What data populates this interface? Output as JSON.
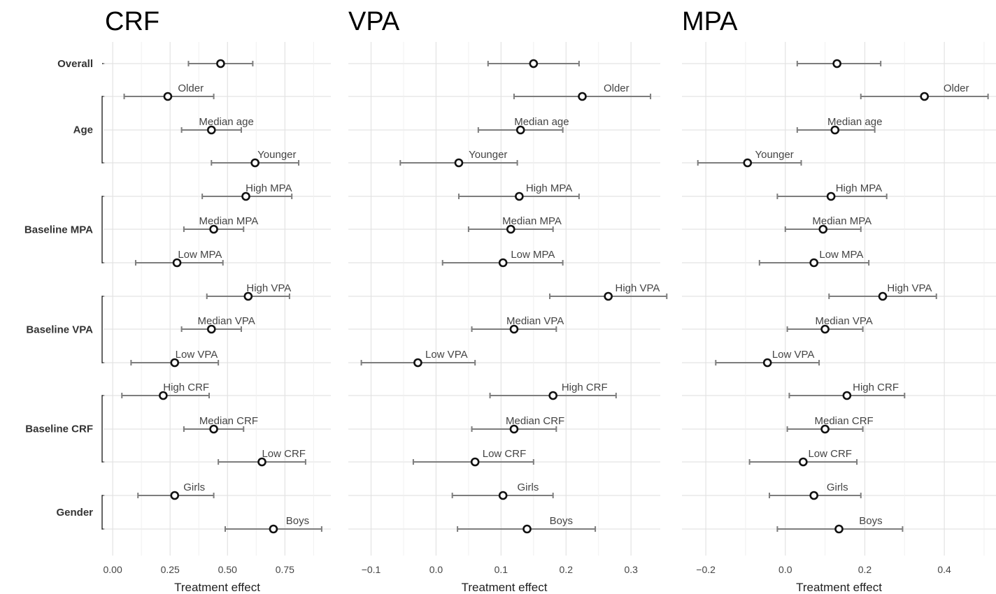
{
  "chart_data": [
    {
      "type": "forest",
      "title": "CRF",
      "xlabel": "Treatment effect",
      "xlim": [
        -0.04,
        0.95
      ],
      "ticks": [
        0.0,
        0.25,
        0.5,
        0.75
      ],
      "tick_labels": [
        "0.00",
        "0.25",
        "0.50",
        "0.75"
      ],
      "points": [
        {
          "label": "",
          "estimate": 0.47,
          "lower": 0.33,
          "upper": 0.61
        },
        {
          "label": "Older",
          "estimate": 0.24,
          "lower": 0.05,
          "upper": 0.44
        },
        {
          "label": "Median age",
          "estimate": 0.43,
          "lower": 0.3,
          "upper": 0.56
        },
        {
          "label": "Younger",
          "estimate": 0.62,
          "lower": 0.43,
          "upper": 0.81
        },
        {
          "label": "High MPA",
          "estimate": 0.58,
          "lower": 0.39,
          "upper": 0.78
        },
        {
          "label": "Median MPA",
          "estimate": 0.44,
          "lower": 0.31,
          "upper": 0.57
        },
        {
          "label": "Low MPA",
          "estimate": 0.28,
          "lower": 0.1,
          "upper": 0.48
        },
        {
          "label": "High VPA",
          "estimate": 0.59,
          "lower": 0.41,
          "upper": 0.77
        },
        {
          "label": "Median VPA",
          "estimate": 0.43,
          "lower": 0.3,
          "upper": 0.56
        },
        {
          "label": "Low VPA",
          "estimate": 0.27,
          "lower": 0.08,
          "upper": 0.46
        },
        {
          "label": "High CRF",
          "estimate": 0.22,
          "lower": 0.04,
          "upper": 0.42
        },
        {
          "label": "Median CRF",
          "estimate": 0.44,
          "lower": 0.31,
          "upper": 0.57
        },
        {
          "label": "Low CRF",
          "estimate": 0.65,
          "lower": 0.46,
          "upper": 0.84
        },
        {
          "label": "Girls",
          "estimate": 0.27,
          "lower": 0.11,
          "upper": 0.44
        },
        {
          "label": "Boys",
          "estimate": 0.7,
          "lower": 0.49,
          "upper": 0.91
        }
      ]
    },
    {
      "type": "forest",
      "title": "VPA",
      "xlabel": "Treatment effect",
      "xlim": [
        -0.135,
        0.345
      ],
      "ticks": [
        -0.1,
        0.0,
        0.1,
        0.2,
        0.3
      ],
      "tick_labels": [
        "−0.1",
        "0.0",
        "0.1",
        "0.2",
        "0.3"
      ],
      "points": [
        {
          "label": "",
          "estimate": 0.15,
          "lower": 0.08,
          "upper": 0.22
        },
        {
          "label": "Older",
          "estimate": 0.225,
          "lower": 0.12,
          "upper": 0.33
        },
        {
          "label": "Median age",
          "estimate": 0.13,
          "lower": 0.065,
          "upper": 0.195
        },
        {
          "label": "Younger",
          "estimate": 0.035,
          "lower": -0.055,
          "upper": 0.125
        },
        {
          "label": "High MPA",
          "estimate": 0.128,
          "lower": 0.035,
          "upper": 0.22
        },
        {
          "label": "Median MPA",
          "estimate": 0.115,
          "lower": 0.05,
          "upper": 0.18
        },
        {
          "label": "Low MPA",
          "estimate": 0.103,
          "lower": 0.01,
          "upper": 0.195
        },
        {
          "label": "High VPA",
          "estimate": 0.265,
          "lower": 0.175,
          "upper": 0.355
        },
        {
          "label": "Median VPA",
          "estimate": 0.12,
          "lower": 0.055,
          "upper": 0.185
        },
        {
          "label": "Low VPA",
          "estimate": -0.028,
          "lower": -0.115,
          "upper": 0.06
        },
        {
          "label": "High CRF",
          "estimate": 0.18,
          "lower": 0.083,
          "upper": 0.277
        },
        {
          "label": "Median CRF",
          "estimate": 0.12,
          "lower": 0.055,
          "upper": 0.185
        },
        {
          "label": "Low CRF",
          "estimate": 0.06,
          "lower": -0.035,
          "upper": 0.15
        },
        {
          "label": "Girls",
          "estimate": 0.103,
          "lower": 0.025,
          "upper": 0.18
        },
        {
          "label": "Boys",
          "estimate": 0.14,
          "lower": 0.033,
          "upper": 0.245
        }
      ]
    },
    {
      "type": "forest",
      "title": "MPA",
      "xlabel": "Treatment effect",
      "xlim": [
        -0.26,
        0.53
      ],
      "ticks": [
        -0.2,
        0.0,
        0.2,
        0.4
      ],
      "tick_labels": [
        "−0.2",
        "0.0",
        "0.2",
        "0.4"
      ],
      "points": [
        {
          "label": "",
          "estimate": 0.13,
          "lower": 0.03,
          "upper": 0.24
        },
        {
          "label": "Older",
          "estimate": 0.35,
          "lower": 0.19,
          "upper": 0.51
        },
        {
          "label": "Median age",
          "estimate": 0.125,
          "lower": 0.03,
          "upper": 0.225
        },
        {
          "label": "Younger",
          "estimate": -0.095,
          "lower": -0.22,
          "upper": 0.04
        },
        {
          "label": "High MPA",
          "estimate": 0.115,
          "lower": -0.02,
          "upper": 0.255
        },
        {
          "label": "Median MPA",
          "estimate": 0.095,
          "lower": 0.0,
          "upper": 0.19
        },
        {
          "label": "Low MPA",
          "estimate": 0.072,
          "lower": -0.065,
          "upper": 0.21
        },
        {
          "label": "High VPA",
          "estimate": 0.245,
          "lower": 0.11,
          "upper": 0.38
        },
        {
          "label": "Median VPA",
          "estimate": 0.1,
          "lower": 0.005,
          "upper": 0.195
        },
        {
          "label": "Low VPA",
          "estimate": -0.045,
          "lower": -0.175,
          "upper": 0.085
        },
        {
          "label": "High CRF",
          "estimate": 0.155,
          "lower": 0.01,
          "upper": 0.3
        },
        {
          "label": "Median CRF",
          "estimate": 0.1,
          "lower": 0.005,
          "upper": 0.195
        },
        {
          "label": "Low CRF",
          "estimate": 0.045,
          "lower": -0.09,
          "upper": 0.18
        },
        {
          "label": "Girls",
          "estimate": 0.072,
          "lower": -0.04,
          "upper": 0.19
        },
        {
          "label": "Boys",
          "estimate": 0.135,
          "lower": -0.02,
          "upper": 0.295
        }
      ]
    }
  ],
  "groups": [
    {
      "label": "Overall",
      "rows": [
        0
      ]
    },
    {
      "label": "Age",
      "rows": [
        1,
        2,
        3
      ]
    },
    {
      "label": "Baseline MPA",
      "rows": [
        4,
        5,
        6
      ]
    },
    {
      "label": "Baseline VPA",
      "rows": [
        7,
        8,
        9
      ]
    },
    {
      "label": "Baseline CRF",
      "rows": [
        10,
        11,
        12
      ]
    },
    {
      "label": "Gender",
      "rows": [
        13,
        14
      ]
    }
  ]
}
